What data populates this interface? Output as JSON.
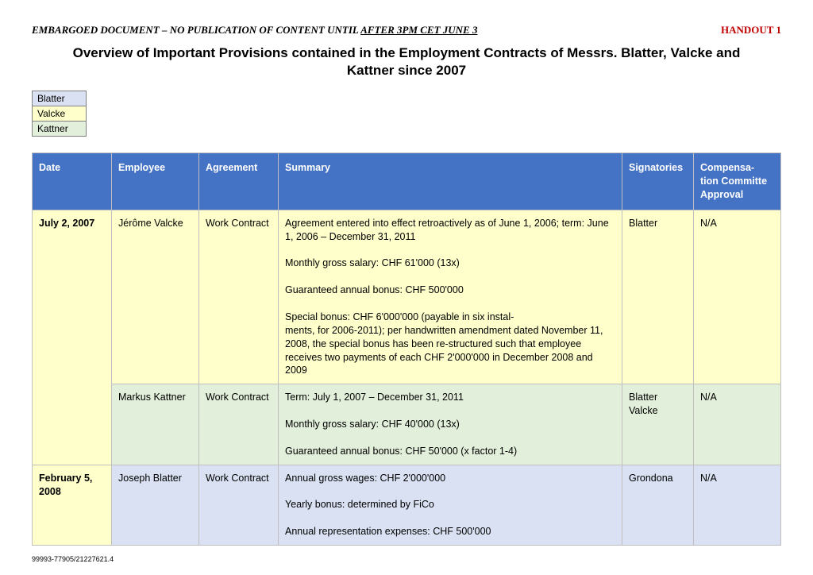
{
  "colors": {
    "header_bg": "#4472c4",
    "header_fg": "#ffffff",
    "blatter_bg": "#d9e1f2",
    "valcke_bg": "#ffffcc",
    "kattner_bg": "#e2efda",
    "cell_border": "#bfbfbf",
    "legend_border": "#808080",
    "handout_fg": "#c00000"
  },
  "embargo": {
    "prefix": "EMBARGOED DOCUMENT – NO PUBLICATION OF CONTENT UNTIL ",
    "underlined": "AFTER 3PM CET JUNE 3"
  },
  "handout": "HANDOUT 1",
  "title": "Overview of Important Provisions contained in the Employment Contracts of Messrs. Blatter, Valcke and Kattner since 2007",
  "legend": [
    {
      "label": "Blatter",
      "bg_key": "blatter_bg"
    },
    {
      "label": "Valcke",
      "bg_key": "valcke_bg"
    },
    {
      "label": "Kattner",
      "bg_key": "kattner_bg"
    }
  ],
  "columns": {
    "date": "Date",
    "employee": "Employee",
    "agreement": "Agreement",
    "summary": "Summary",
    "signatories": "Signatories",
    "comp": "Compensa-\ntion Committe Approval"
  },
  "rows": [
    {
      "date": "July 2, 2007",
      "date_bg_key": "valcke_bg",
      "date_rowspan": 2,
      "employee": "Jérôme Valcke",
      "agreement": "Work Contract",
      "summary": "Agreement entered into effect retroactively as of June 1, 2006; term: June 1, 2006 – December 31, 2011\n\nMonthly gross salary: CHF 61'000 (13x)\n\nGuaranteed annual bonus: CHF 500'000\n\nSpecial bonus: CHF 6'000'000 (payable in six instal-\nments, for 2006-2011); per handwritten amendment dated November 11, 2008, the special bonus has been re-structured such that employee receives two payments of each CHF 2'000'000 in December 2008 and 2009",
      "signatories": "Blatter",
      "comp": "N/A",
      "body_bg_key": "valcke_bg"
    },
    {
      "employee": "Markus Kattner",
      "agreement": "Work Contract",
      "summary": "Term: July 1, 2007 – December 31, 2011\n\nMonthly gross salary: CHF 40'000 (13x)\n\nGuaranteed annual bonus: CHF 50'000 (x factor 1-4)",
      "signatories": "Blatter\nValcke",
      "comp": "N/A",
      "body_bg_key": "kattner_bg"
    },
    {
      "date": "February 5, 2008",
      "date_bg_key": "valcke_bg",
      "date_rowspan": 1,
      "employee": "Joseph Blatter",
      "agreement": "Work Contract",
      "summary": "Annual gross wages: CHF 2'000'000\n\nYearly bonus: determined by FiCo\n\nAnnual representation expenses: CHF 500'000",
      "signatories": "Grondona",
      "comp": "N/A",
      "body_bg_key": "blatter_bg"
    }
  ],
  "footer": "99993-77905/21227621.4"
}
